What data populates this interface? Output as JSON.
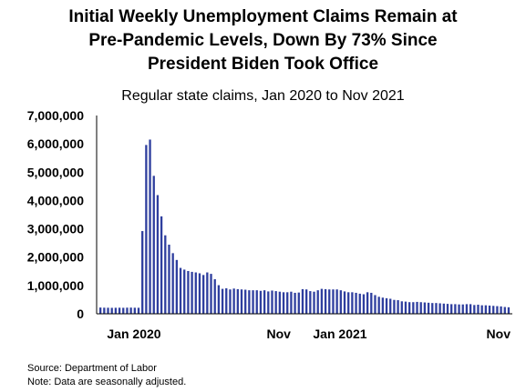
{
  "chart_data": {
    "type": "bar",
    "title": [
      "Initial Weekly Unemployment Claims Remain at",
      "Pre-Pandemic Levels, Down By 73% Since",
      "President Biden Took Office"
    ],
    "subtitle": "Regular state claims, Jan 2020 to Nov 2021",
    "ylim": [
      0,
      7000000
    ],
    "yticks": [
      "7,000,000",
      "6,000,000",
      "5,000,000",
      "4,000,000",
      "3,000,000",
      "2,000,000",
      "1,000,000",
      "0"
    ],
    "xtick_labels": [
      "Jan 2020",
      "Nov",
      "Jan 2021",
      "Nov"
    ],
    "series": [
      {
        "color": "#2E3E9E",
        "values": [
          220000,
          215000,
          213000,
          210000,
          212000,
          214000,
          211000,
          216000,
          218000,
          214000,
          212000,
          2920000,
          5960000,
          6150000,
          4870000,
          4190000,
          3440000,
          2770000,
          2440000,
          2140000,
          1900000,
          1620000,
          1560000,
          1510000,
          1480000,
          1460000,
          1430000,
          1370000,
          1460000,
          1410000,
          1220000,
          1010000,
          880000,
          900000,
          860000,
          890000,
          870000,
          860000,
          850000,
          830000,
          830000,
          830000,
          810000,
          830000,
          790000,
          820000,
          800000,
          780000,
          760000,
          760000,
          780000,
          740000,
          750000,
          870000,
          860000,
          800000,
          780000,
          830000,
          880000,
          870000,
          860000,
          860000,
          860000,
          830000,
          790000,
          760000,
          760000,
          740000,
          710000,
          690000,
          760000,
          740000,
          660000,
          600000,
          570000,
          550000,
          530000,
          490000,
          480000,
          440000,
          430000,
          410000,
          410000,
          420000,
          410000,
          400000,
          390000,
          380000,
          380000,
          370000,
          360000,
          350000,
          340000,
          340000,
          330000,
          330000,
          340000,
          340000,
          310000,
          320000,
          300000,
          300000,
          290000,
          280000,
          270000,
          260000,
          240000,
          230000
        ]
      }
    ]
  },
  "footer": {
    "source": "Source: Department of Labor",
    "note": "Note: Data are seasonally adjusted."
  }
}
